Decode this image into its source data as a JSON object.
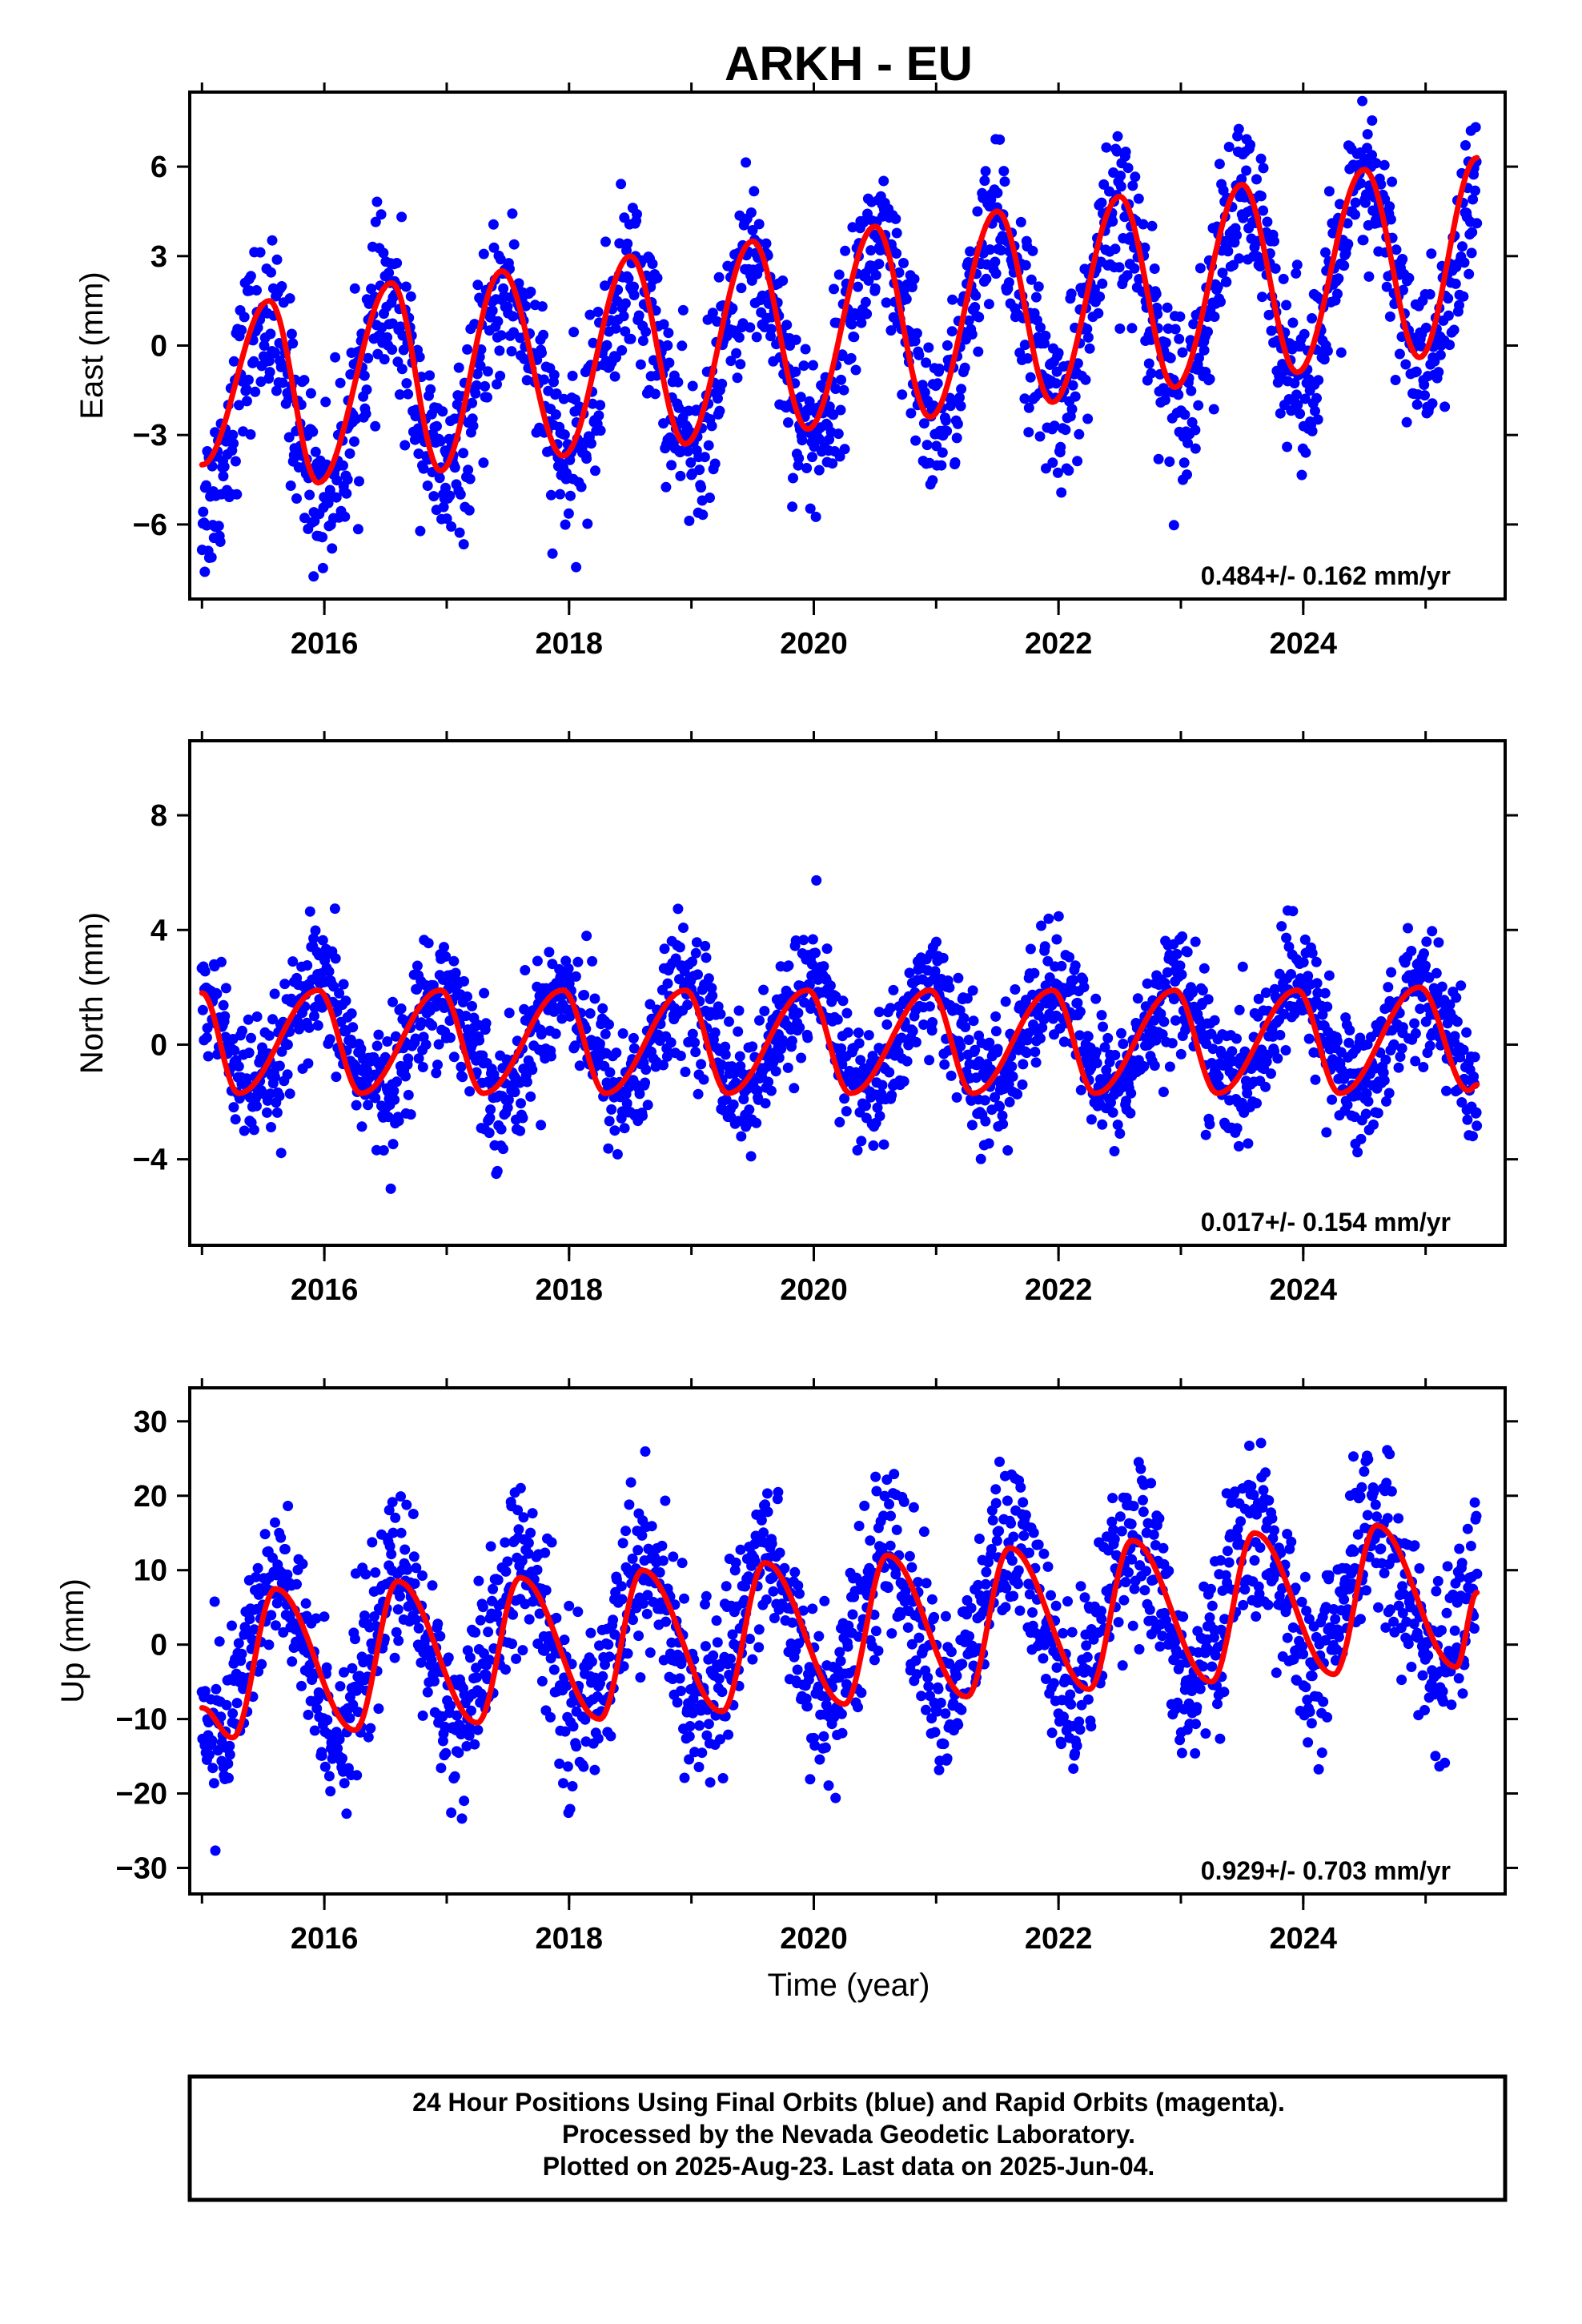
{
  "title": "ARKH - EU",
  "xlabel": "Time (year)",
  "x_ticks": [
    2016,
    2018,
    2020,
    2022,
    2024
  ],
  "footer": {
    "line1": "24 Hour Positions Using Final Orbits (blue) and Rapid Orbits (magenta).",
    "line2": "Processed by the Nevada Geodetic Laboratory.",
    "line3": "Plotted on 2025-Aug-23. Last data on 2025-Jun-04."
  },
  "colors": {
    "points": "#0000ff",
    "model": "#ff0000",
    "frame": "#000000"
  },
  "chart_data": [
    {
      "type": "scatter",
      "ylabel": "East (mm)",
      "rate": "0.484+/- 0.162 mm/yr",
      "xlim": [
        2014.9,
        2025.65
      ],
      "ylim": [
        -8.5,
        8.5
      ],
      "y_ticks": [
        -6,
        -3,
        0,
        3,
        6
      ],
      "series": [
        {
          "kind": "points",
          "x_start": 2015.0,
          "x_end": 2025.42,
          "trend_start": -2.4,
          "rate": 0.484,
          "seasonal_amplitude": 3.0,
          "seasonal_peak": 0.5,
          "scatter_sd": 1.4
        },
        {
          "kind": "model",
          "x": [
            2015.0,
            2015.55,
            2015.95,
            2016.55,
            2016.95,
            2017.45,
            2017.95,
            2018.5,
            2018.95,
            2019.5,
            2019.95,
            2020.5,
            2020.95,
            2021.5,
            2021.95,
            2022.5,
            2022.95,
            2023.5,
            2023.95,
            2024.5,
            2024.95,
            2025.42
          ],
          "y": [
            -4.0,
            1.5,
            -4.6,
            2.1,
            -4.2,
            2.5,
            -3.7,
            3.0,
            -3.3,
            3.5,
            -2.8,
            4.0,
            -2.4,
            4.5,
            -1.9,
            5.0,
            -1.4,
            5.4,
            -0.9,
            5.9,
            -0.4,
            6.3
          ]
        }
      ]
    },
    {
      "type": "scatter",
      "ylabel": "North (mm)",
      "rate": "0.017+/- 0.154 mm/yr",
      "xlim": [
        2014.9,
        2025.65
      ],
      "ylim": [
        -7.0,
        10.6
      ],
      "y_ticks": [
        -4,
        0,
        4,
        8
      ],
      "series": [
        {
          "kind": "points",
          "x_start": 2015.0,
          "x_end": 2025.42,
          "trend_start": 0.1,
          "rate": 0.017,
          "seasonal_amplitude": 1.8,
          "seasonal_peak": 0.95,
          "scatter_sd": 1.1
        },
        {
          "kind": "model",
          "x": [
            2015.0,
            2015.3,
            2015.95,
            2016.3,
            2016.95,
            2017.3,
            2017.95,
            2018.3,
            2018.95,
            2019.3,
            2019.95,
            2020.3,
            2020.95,
            2021.3,
            2021.95,
            2022.3,
            2022.95,
            2023.3,
            2023.95,
            2024.3,
            2024.95,
            2025.35,
            2025.42
          ],
          "y": [
            1.8,
            -1.7,
            1.9,
            -1.7,
            1.9,
            -1.7,
            1.9,
            -1.7,
            1.9,
            -1.7,
            1.9,
            -1.7,
            1.9,
            -1.7,
            1.9,
            -1.7,
            1.9,
            -1.7,
            1.9,
            -1.7,
            2.0,
            -1.6,
            -1.4
          ]
        }
      ]
    },
    {
      "type": "scatter",
      "ylabel": "Up (mm)",
      "rate": "0.929+/- 0.703 mm/yr",
      "xlim": [
        2014.9,
        2025.65
      ],
      "ylim": [
        -33.5,
        34.5
      ],
      "y_ticks": [
        -30,
        -20,
        -10,
        0,
        10,
        20,
        30
      ],
      "series": [
        {
          "kind": "points",
          "x_start": 2015.0,
          "x_end": 2025.42,
          "trend_start": -2.5,
          "rate": 0.929,
          "seasonal_amplitude": 10.0,
          "seasonal_peak": 0.6,
          "scatter_sd": 5.5
        },
        {
          "kind": "model",
          "x": [
            2015.0,
            2015.25,
            2015.6,
            2016.25,
            2016.6,
            2017.25,
            2017.6,
            2018.25,
            2018.6,
            2019.25,
            2019.6,
            2020.25,
            2020.6,
            2021.25,
            2021.6,
            2022.25,
            2022.6,
            2023.25,
            2023.6,
            2024.25,
            2024.6,
            2025.25,
            2025.42
          ],
          "y": [
            -8.5,
            -12.5,
            7.5,
            -11.5,
            8.5,
            -10.5,
            9.0,
            -10.0,
            10.0,
            -9.0,
            11.0,
            -8.0,
            12.0,
            -7.0,
            13.0,
            -6.0,
            14.0,
            -5.0,
            15.0,
            -4.0,
            16.0,
            -3.0,
            7.0
          ]
        }
      ]
    }
  ]
}
